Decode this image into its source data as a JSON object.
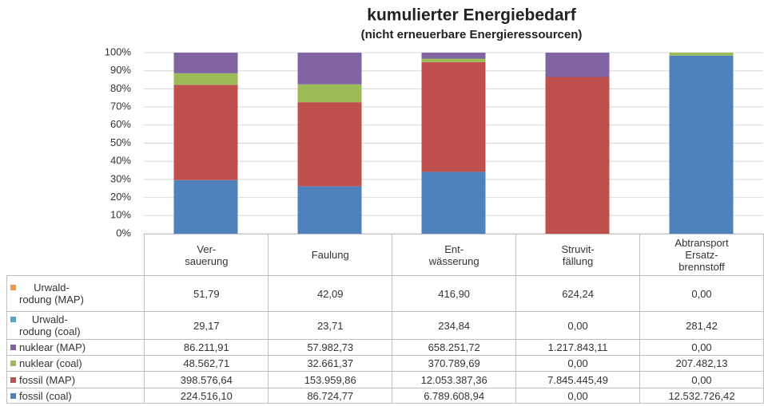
{
  "chart_data": {
    "type": "stacked_percent_bar",
    "title": "kumulierter Energiebedarf",
    "subtitle": "(nicht erneuerbare Energieressourcen)",
    "categories": [
      "Ver-\nsauerung",
      "Faulung",
      "Ent-\nwässerung",
      "Struvit-\nfällung",
      "Abtransport\nErsatz-\nbrennstoff"
    ],
    "ylim": [
      0,
      100
    ],
    "yticks": [
      {
        "value": 0,
        "label": "0%"
      },
      {
        "value": 10,
        "label": "10%"
      },
      {
        "value": 20,
        "label": "20%"
      },
      {
        "value": 30,
        "label": "30%"
      },
      {
        "value": 40,
        "label": "40%"
      },
      {
        "value": 50,
        "label": "50%"
      },
      {
        "value": 60,
        "label": "60%"
      },
      {
        "value": 70,
        "label": "70%"
      },
      {
        "value": 80,
        "label": "80%"
      },
      {
        "value": 90,
        "label": "90%"
      },
      {
        "value": 100,
        "label": "100%"
      }
    ],
    "grid": true,
    "series": [
      {
        "name": "fossil (coal)",
        "color": "#4f81bd",
        "values": [
          224516.1,
          86724.77,
          6789608.94,
          0.0,
          12532726.42
        ],
        "value_labels": [
          "224.516,10",
          "86.724,77",
          "6.789.608,94",
          "0,00",
          "12.532.726,42"
        ]
      },
      {
        "name": "fossil (MAP)",
        "color": "#c0504d",
        "values": [
          398576.64,
          153959.86,
          12053387.36,
          7845445.49,
          0.0
        ],
        "value_labels": [
          "398.576,64",
          "153.959,86",
          "12.053.387,36",
          "7.845.445,49",
          "0,00"
        ]
      },
      {
        "name": "nuklear (coal)",
        "color": "#9bbb59",
        "values": [
          48562.71,
          32661.37,
          370789.69,
          0.0,
          207482.13
        ],
        "value_labels": [
          "48.562,71",
          "32.661,37",
          "370.789,69",
          "0,00",
          "207.482,13"
        ]
      },
      {
        "name": "nuklear (MAP)",
        "color": "#8064a2",
        "values": [
          86211.91,
          57982.73,
          658251.72,
          1217843.11,
          0.0
        ],
        "value_labels": [
          "86.211,91",
          "57.982,73",
          "658.251,72",
          "1.217.843,11",
          "0,00"
        ]
      },
      {
        "name": "Urwald-\nrodung (coal)",
        "color": "#4bacc6",
        "values": [
          29.17,
          23.71,
          234.84,
          0.0,
          281.42
        ],
        "value_labels": [
          "29,17",
          "23,71",
          "234,84",
          "0,00",
          "281,42"
        ]
      },
      {
        "name": "Urwald-\nrodung (MAP)",
        "color": "#f79646",
        "values": [
          51.79,
          42.09,
          416.9,
          624.24,
          0.0
        ],
        "value_labels": [
          "51,79",
          "42,09",
          "416,90",
          "624,24",
          "0,00"
        ]
      }
    ]
  }
}
